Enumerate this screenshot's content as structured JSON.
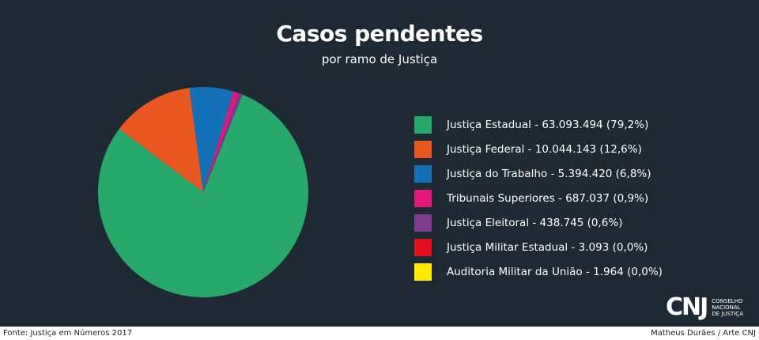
{
  "title": "Casos pendentes",
  "subtitle": "por ramo de Justiça",
  "logo": {
    "mark": "CNJ",
    "line1": "CONSELHO",
    "line2": "NACIONAL",
    "line3": "DE JUSTIÇA"
  },
  "footer": {
    "source": "Fonte: Justiça em Números 2017",
    "credit": "Matheus Durães / Arte CNJ"
  },
  "chart_data": {
    "type": "pie",
    "legend_position": "right",
    "slices": [
      {
        "label": "Justiça Estadual - 63.093.494 (79,2%)",
        "name": "Justiça Estadual",
        "value": 63093494,
        "percent": 79.2,
        "color": "#26a96b"
      },
      {
        "label": "Justiça Federal - 10.044.143 (12,6%)",
        "name": "Justiça Federal",
        "value": 10044143,
        "percent": 12.6,
        "color": "#e8581f"
      },
      {
        "label": "Justiça do Trabalho - 5.394.420 (6,8%)",
        "name": "Justiça do Trabalho",
        "value": 5394420,
        "percent": 6.8,
        "color": "#1371b8"
      },
      {
        "label": "Tribunais Superiores - 687.037 (0,9%)",
        "name": "Tribunais Superiores",
        "value": 687037,
        "percent": 0.9,
        "color": "#e2187c"
      },
      {
        "label": "Justiça Eleitoral - 438.745 (0,6%)",
        "name": "Justiça Eleitoral",
        "value": 438745,
        "percent": 0.6,
        "color": "#7f3a8e"
      },
      {
        "label": "Justiça Militar Estadual - 3.093 (0,0%)",
        "name": "Justiça Militar Estadual",
        "value": 3093,
        "percent": 0.0,
        "color": "#e3101e"
      },
      {
        "label": "Auditoria Militar da União - 1.964 (0,0%)",
        "name": "Auditoria Militar da União",
        "value": 1964,
        "percent": 0.0,
        "color": "#ffec00"
      }
    ]
  }
}
